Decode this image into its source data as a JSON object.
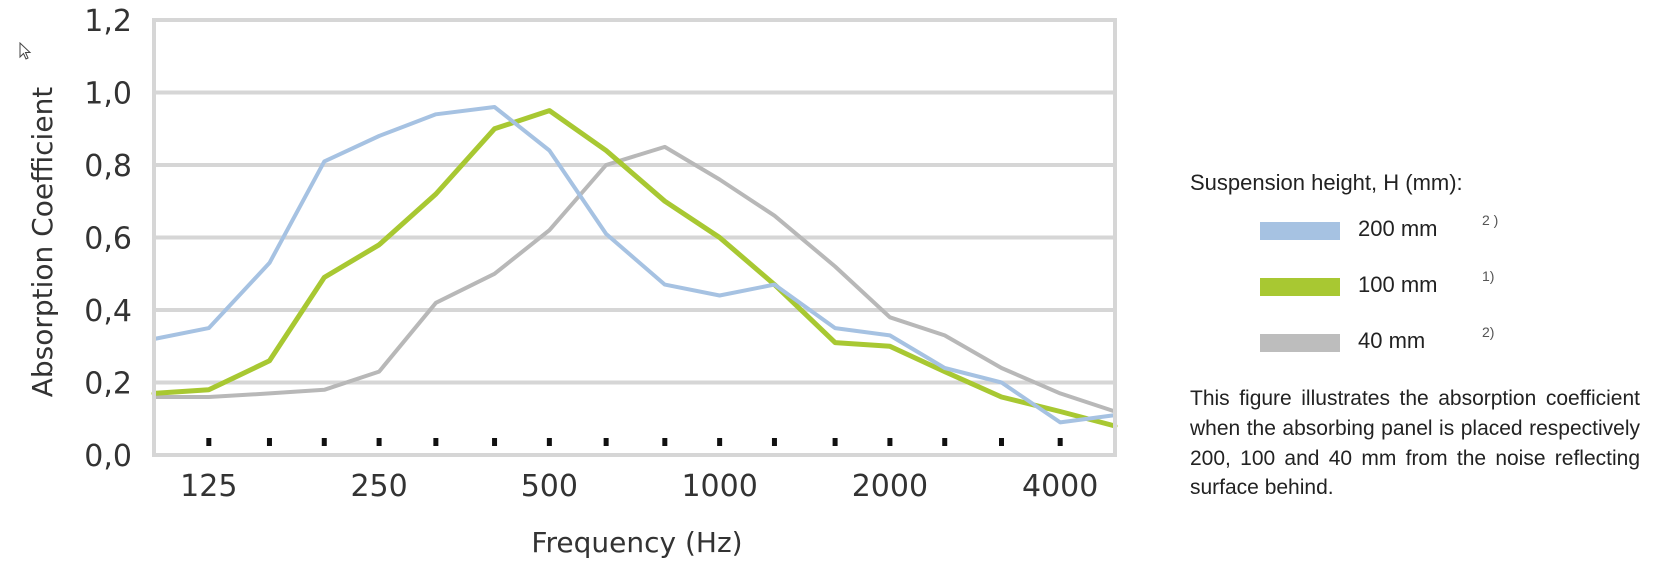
{
  "chart_data": {
    "type": "line",
    "xlabel": "Frequency (Hz)",
    "ylabel": "Absorption Coefficient",
    "x_tick_labels": [
      "125",
      "250",
      "500",
      "1000",
      "2000",
      "4000"
    ],
    "x_scale": "log2 (third-octave steps)",
    "x_points": [
      100,
      125,
      160,
      200,
      250,
      315,
      400,
      500,
      630,
      800,
      1000,
      1250,
      1600,
      2000,
      2500,
      3150,
      4000,
      5000
    ],
    "xlim": [
      100,
      5000
    ],
    "y_tick_labels": [
      "0,0",
      "0,2",
      "0,4",
      "0,6",
      "0,8",
      "1,0",
      "1,2"
    ],
    "ylim": [
      0,
      1.2
    ],
    "grid": "horizontal",
    "series": [
      {
        "name": "200 mm",
        "color": "#a6c2e2",
        "values": [
          0.32,
          0.35,
          0.53,
          0.81,
          0.88,
          0.94,
          0.96,
          0.84,
          0.61,
          0.47,
          0.44,
          0.47,
          0.35,
          0.33,
          0.24,
          0.2,
          0.09,
          0.11
        ]
      },
      {
        "name": "100 mm",
        "color": "#a8c832",
        "values": [
          0.17,
          0.18,
          0.26,
          0.49,
          0.58,
          0.72,
          0.9,
          0.95,
          0.84,
          0.7,
          0.6,
          0.47,
          0.31,
          0.3,
          0.23,
          0.16,
          0.12,
          0.08
        ]
      },
      {
        "name": "40 mm",
        "color": "#b8b8b8",
        "values": [
          0.16,
          0.16,
          0.17,
          0.18,
          0.23,
          0.42,
          0.5,
          0.62,
          0.8,
          0.85,
          0.76,
          0.66,
          0.52,
          0.38,
          0.33,
          0.24,
          0.17,
          0.12
        ]
      }
    ]
  },
  "legend": {
    "title": "Suspension height, H (mm):",
    "items": [
      {
        "label": "200 mm",
        "note": "2 )",
        "color": "#a6c2e2"
      },
      {
        "label": "100 mm",
        "note": "1)",
        "color": "#a8c832"
      },
      {
        "label": " 40 mm",
        "note": "2)",
        "color": "#bdbdbd"
      }
    ],
    "caption": "This figure illustrates the absorption coefficient when the absorbing panel is placed respectively 200, 100 and 40 mm from the noise reflecting surface behind."
  }
}
